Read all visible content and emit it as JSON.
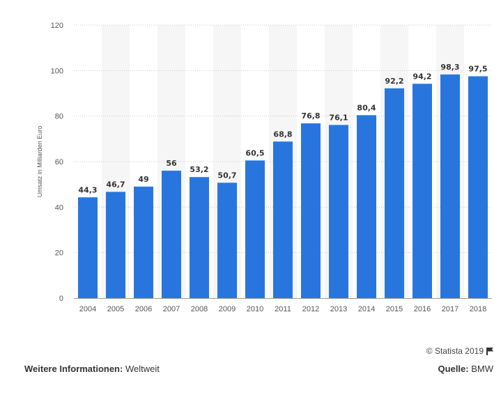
{
  "chart_data": {
    "type": "bar",
    "categories": [
      "2004",
      "2005",
      "2006",
      "2007",
      "2008",
      "2009",
      "2010",
      "2011",
      "2012",
      "2013",
      "2014",
      "2015",
      "2016",
      "2017",
      "2018"
    ],
    "values": [
      44.3,
      46.7,
      49,
      56,
      53.2,
      50.7,
      60.5,
      68.8,
      76.8,
      76.1,
      80.4,
      92.2,
      94.2,
      98.3,
      97.5
    ],
    "value_labels": [
      "44,3",
      "46,7",
      "49",
      "56",
      "53,2",
      "50,7",
      "60,5",
      "68,8",
      "76,8",
      "76,1",
      "80,4",
      "92,2",
      "94,2",
      "98,3",
      "97,5"
    ],
    "ylabel": "Umsatz in Milliarden Euro",
    "ylim": [
      0,
      120
    ],
    "yticks": [
      "0",
      "20",
      "40",
      "60",
      "80",
      "100",
      "120"
    ],
    "grid": true,
    "bar_color": "#2876dd"
  },
  "credit": {
    "text": "© Statista 2019",
    "icon": "flag-icon"
  },
  "footer": {
    "info_label": "Weitere Informationen:",
    "info_value": " Weltweit",
    "source_label": "Quelle:",
    "source_value": " BMW"
  }
}
